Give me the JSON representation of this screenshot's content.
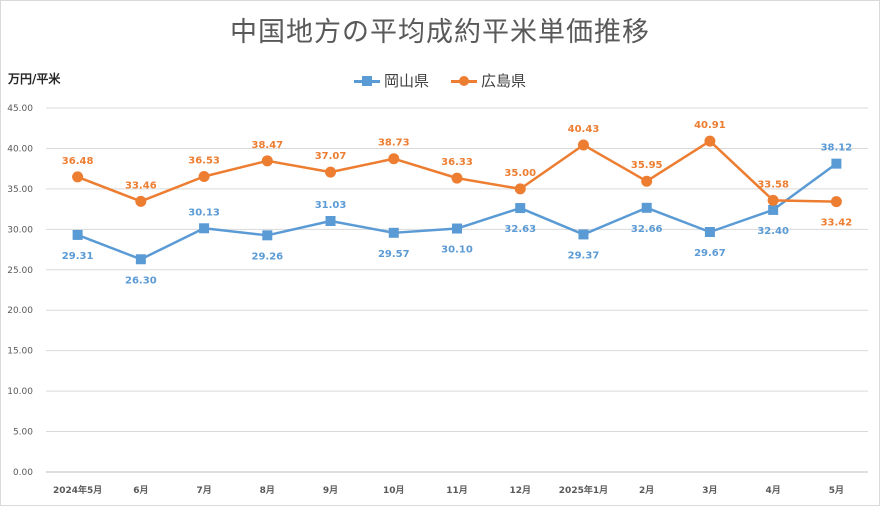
{
  "chart_data": {
    "type": "line",
    "title": "中国地方の平均成約平米単価推移",
    "ylabel": "万円/平米",
    "xlabel": "",
    "categories": [
      "2024年5月",
      "6月",
      "7月",
      "8月",
      "9月",
      "10月",
      "11月",
      "12月",
      "2025年1月",
      "2月",
      "3月",
      "4月",
      "5月"
    ],
    "ylim": [
      0,
      45
    ],
    "ytick_labels": [
      "0.00",
      "5.00",
      "10.00",
      "15.00",
      "20.00",
      "25.00",
      "30.00",
      "35.00",
      "40.00",
      "45.00"
    ],
    "grid": true,
    "legend_position": "top",
    "series": [
      {
        "name": "岡山県",
        "color": "#5b9bd5",
        "marker": "square",
        "values": [
          29.31,
          26.3,
          30.13,
          29.26,
          31.03,
          29.57,
          30.1,
          32.63,
          29.37,
          32.66,
          29.67,
          32.4,
          38.12
        ],
        "labels": [
          "29.31",
          "26.30",
          "30.13",
          "29.26",
          "31.03",
          "29.57",
          "30.10",
          "32.63",
          "29.37",
          "32.66",
          "29.67",
          "32.40",
          "38.12"
        ]
      },
      {
        "name": "広島県",
        "color": "#ed7d31",
        "marker": "circle",
        "values": [
          36.48,
          33.46,
          36.53,
          38.47,
          37.07,
          38.73,
          36.33,
          35.0,
          40.43,
          35.95,
          40.91,
          33.58,
          33.42
        ],
        "labels": [
          "36.48",
          "33.46",
          "36.53",
          "38.47",
          "37.07",
          "38.73",
          "36.33",
          "35.00",
          "40.43",
          "35.95",
          "40.91",
          "33.58",
          "33.42"
        ]
      }
    ]
  }
}
